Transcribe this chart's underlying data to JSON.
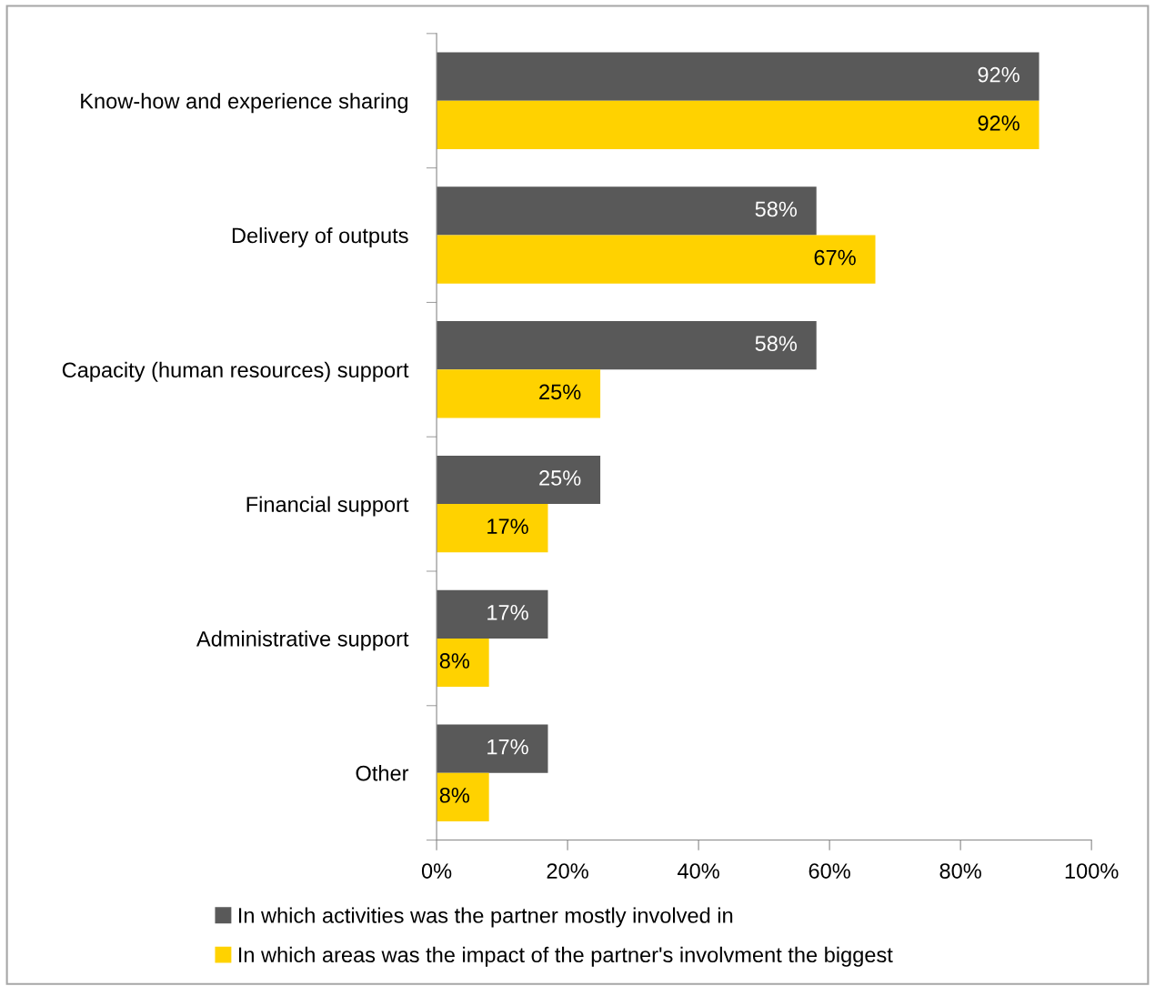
{
  "chart_data": {
    "type": "bar",
    "orientation": "horizontal",
    "categories": [
      "Know-how and experience sharing",
      "Delivery of outputs",
      "Capacity (human resources) support",
      "Financial support",
      "Administrative support",
      "Other"
    ],
    "series": [
      {
        "name": "In which activities was the partner mostly involved in",
        "color": "#595959",
        "values": [
          92,
          58,
          58,
          25,
          17,
          17
        ],
        "value_labels": [
          "92%",
          "58%",
          "58%",
          "25%",
          "17%",
          "17%"
        ]
      },
      {
        "name": "In which areas was the impact of the partner's involvment the biggest",
        "color": "#ffd200",
        "values": [
          92,
          67,
          25,
          17,
          8,
          8
        ],
        "value_labels": [
          "92%",
          "67%",
          "25%",
          "17%",
          "8%",
          "8%"
        ]
      }
    ],
    "xlim": [
      0,
      100
    ],
    "xticks": [
      {
        "value": 0,
        "label": "0%"
      },
      {
        "value": 20,
        "label": "20%"
      },
      {
        "value": 40,
        "label": "40%"
      },
      {
        "value": 60,
        "label": "60%"
      },
      {
        "value": 80,
        "label": "80%"
      },
      {
        "value": 100,
        "label": "100%"
      }
    ],
    "grid": false,
    "legend": "bottom"
  }
}
